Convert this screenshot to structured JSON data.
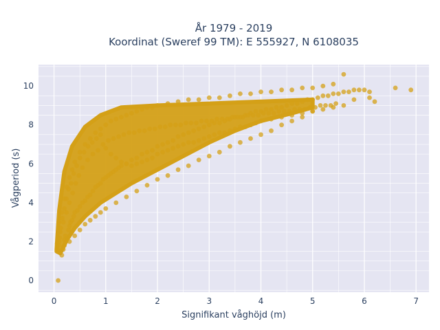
{
  "chart_data": {
    "type": "scatter",
    "title": [
      "År 1979 - 2019",
      "Koordinat (Sweref 99 TM): E 555927, N 6108035"
    ],
    "xlabel": "Signifikant våghöjd (m)",
    "ylabel": "Vågperiod (s)",
    "xlim": [
      -0.3,
      7.25
    ],
    "ylim": [
      -0.6,
      11.1
    ],
    "xticks": [
      0,
      1,
      2,
      3,
      4,
      5,
      6,
      7
    ],
    "yticks": [
      0,
      2,
      4,
      6,
      8,
      10
    ],
    "grid": true,
    "legend": "none",
    "colors": {
      "marker": "#d4a017",
      "plot_bg": "#e5e5f2",
      "grid": "#ffffff",
      "text": "#2a3f5f"
    },
    "series": [
      {
        "marker_opacity": 0.75,
        "x": [
          0.08,
          0.06,
          0.1,
          0.12,
          0.15,
          0.18,
          0.2,
          0.22,
          0.25,
          0.28,
          0.3,
          0.32,
          0.35,
          0.38,
          0.4,
          0.45,
          0.5,
          0.55,
          0.6,
          0.65,
          0.7,
          0.75,
          0.8,
          0.85,
          0.9,
          0.95,
          1.0,
          1.05,
          1.1,
          1.15,
          1.2,
          1.25,
          1.3,
          1.4,
          1.5,
          1.6,
          1.7,
          1.8,
          1.9,
          2.0,
          2.1,
          2.2,
          2.3,
          2.4,
          2.5,
          2.6,
          2.7,
          2.8,
          2.9,
          3.0,
          3.1,
          3.2,
          3.3,
          3.4,
          3.5,
          3.6,
          3.7,
          3.8,
          3.9,
          4.0,
          4.1,
          4.2,
          4.3,
          4.4,
          4.5,
          4.6,
          4.7,
          4.8,
          4.9,
          5.0,
          5.1,
          5.2,
          5.3,
          5.4,
          5.5,
          5.6,
          5.7,
          5.8,
          5.9,
          6.0,
          6.1,
          6.2,
          6.6,
          6.9,
          0.1,
          0.15,
          0.2,
          0.25,
          0.3,
          0.35,
          0.4,
          0.5,
          0.6,
          0.7,
          0.8,
          0.9,
          1.0,
          1.1,
          1.2,
          1.3,
          1.4,
          1.5,
          1.6,
          1.7,
          1.8,
          1.9,
          2.0,
          2.2,
          2.4,
          2.6,
          2.8,
          3.0,
          3.2,
          3.4,
          3.6,
          3.8,
          4.0,
          4.2,
          4.4,
          4.6,
          4.8,
          5.0,
          5.2,
          5.4,
          5.6,
          0.2,
          0.3,
          0.4,
          0.5,
          0.6,
          0.7,
          0.8,
          0.9,
          1.0,
          1.2,
          1.4,
          1.6,
          1.8,
          2.0,
          2.2,
          2.4,
          2.6,
          2.8,
          3.0,
          3.2,
          3.4,
          3.6,
          3.8,
          4.0,
          4.2,
          4.4,
          4.6,
          4.8,
          5.0,
          0.12,
          0.18,
          0.24,
          0.3,
          0.36,
          0.42,
          0.48,
          0.55,
          0.65,
          0.75,
          0.85,
          0.95,
          1.05,
          1.15,
          1.25,
          1.35,
          1.45,
          1.55,
          1.65,
          1.75,
          1.85,
          1.95,
          2.05,
          2.15,
          2.25,
          2.35,
          2.45,
          2.55,
          2.65,
          2.75,
          2.85,
          2.95,
          3.05,
          3.15,
          3.25,
          3.35,
          3.45,
          3.55,
          3.65,
          3.75,
          3.85,
          3.95,
          4.05,
          4.15,
          4.25,
          4.35,
          4.45,
          4.55,
          4.65,
          4.75,
          4.85,
          4.95,
          5.05,
          5.15,
          5.25,
          5.35,
          5.45,
          0.07,
          0.09,
          0.11,
          0.13,
          0.16,
          0.2,
          0.24,
          0.28,
          0.33,
          0.38,
          0.44,
          0.5,
          0.58,
          0.66,
          0.74,
          0.82,
          0.9,
          1.0,
          1.1,
          1.2,
          1.3,
          1.4,
          1.5,
          1.6,
          1.7,
          1.8,
          1.9,
          2.0,
          2.1,
          2.2,
          2.3,
          2.4,
          2.5,
          2.6,
          2.7,
          2.8,
          2.9,
          3.0,
          3.1,
          3.2,
          3.3,
          3.4,
          3.5,
          3.6,
          3.7,
          3.8,
          3.9,
          4.0,
          4.2,
          4.4,
          4.6,
          4.8,
          5.0,
          5.2,
          5.4,
          5.6,
          5.8,
          6.1
        ],
        "y": [
          0.0,
          1.9,
          2.0,
          1.5,
          1.3,
          1.6,
          2.1,
          2.3,
          2.2,
          2.6,
          2.8,
          3.0,
          3.1,
          3.3,
          3.5,
          3.6,
          3.8,
          4.0,
          4.1,
          4.3,
          4.4,
          4.6,
          4.8,
          4.9,
          5.0,
          5.2,
          5.3,
          5.4,
          5.5,
          5.6,
          5.7,
          5.8,
          5.9,
          6.0,
          6.2,
          6.3,
          6.5,
          6.6,
          6.7,
          6.9,
          7.0,
          7.1,
          7.2,
          7.4,
          7.5,
          7.6,
          7.7,
          7.8,
          7.9,
          8.0,
          8.1,
          8.1,
          8.2,
          8.3,
          8.4,
          8.4,
          8.5,
          8.6,
          8.7,
          8.7,
          8.8,
          8.8,
          8.9,
          8.9,
          9.0,
          9.1,
          9.1,
          9.2,
          9.3,
          9.3,
          9.4,
          9.5,
          9.5,
          9.6,
          9.6,
          9.7,
          9.7,
          9.8,
          9.8,
          9.8,
          9.7,
          9.2,
          9.9,
          9.8,
          3.0,
          3.5,
          4.2,
          4.8,
          5.3,
          5.7,
          6.1,
          6.6,
          7.0,
          7.3,
          7.6,
          7.8,
          8.0,
          8.2,
          8.3,
          8.4,
          8.5,
          8.6,
          8.7,
          8.8,
          8.9,
          8.9,
          9.0,
          9.1,
          9.2,
          9.3,
          9.3,
          9.4,
          9.4,
          9.5,
          9.6,
          9.6,
          9.7,
          9.7,
          9.8,
          9.8,
          9.9,
          9.9,
          10.0,
          10.1,
          10.6,
          1.8,
          2.0,
          2.3,
          2.6,
          2.9,
          3.1,
          3.3,
          3.5,
          3.7,
          4.0,
          4.3,
          4.6,
          4.9,
          5.2,
          5.4,
          5.7,
          5.9,
          6.2,
          6.4,
          6.6,
          6.9,
          7.1,
          7.3,
          7.5,
          7.7,
          8.0,
          8.2,
          8.4,
          8.7,
          2.5,
          3.0,
          3.5,
          4.0,
          4.5,
          5.0,
          5.4,
          5.8,
          6.2,
          6.5,
          6.7,
          7.0,
          7.2,
          7.3,
          7.4,
          7.5,
          7.6,
          7.6,
          7.7,
          7.7,
          7.8,
          7.8,
          7.9,
          7.9,
          8.0,
          8.0,
          8.0,
          8.1,
          8.1,
          8.1,
          8.2,
          8.2,
          8.2,
          8.3,
          8.3,
          8.3,
          8.4,
          8.4,
          8.4,
          8.5,
          8.5,
          8.5,
          8.6,
          8.6,
          8.6,
          8.7,
          8.7,
          8.7,
          8.8,
          8.8,
          8.8,
          8.9,
          8.9,
          9.0,
          9.0,
          9.0,
          9.1,
          1.6,
          1.8,
          2.2,
          2.7,
          3.2,
          3.7,
          4.2,
          4.7,
          5.0,
          5.5,
          5.9,
          6.3,
          6.6,
          6.9,
          7.1,
          7.3,
          7.5,
          6.8,
          6.5,
          6.3,
          6.1,
          6.0,
          5.9,
          6.0,
          6.1,
          6.2,
          6.3,
          6.5,
          6.6,
          6.7,
          6.8,
          6.9,
          7.0,
          7.1,
          7.1,
          7.2,
          7.3,
          7.4,
          7.5,
          7.6,
          7.6,
          7.7,
          7.8,
          7.9,
          7.9,
          8.0,
          8.1,
          8.2,
          8.3,
          8.4,
          8.5,
          8.6,
          8.7,
          8.8,
          8.9,
          9.0,
          9.3,
          9.4
        ]
      }
    ]
  }
}
